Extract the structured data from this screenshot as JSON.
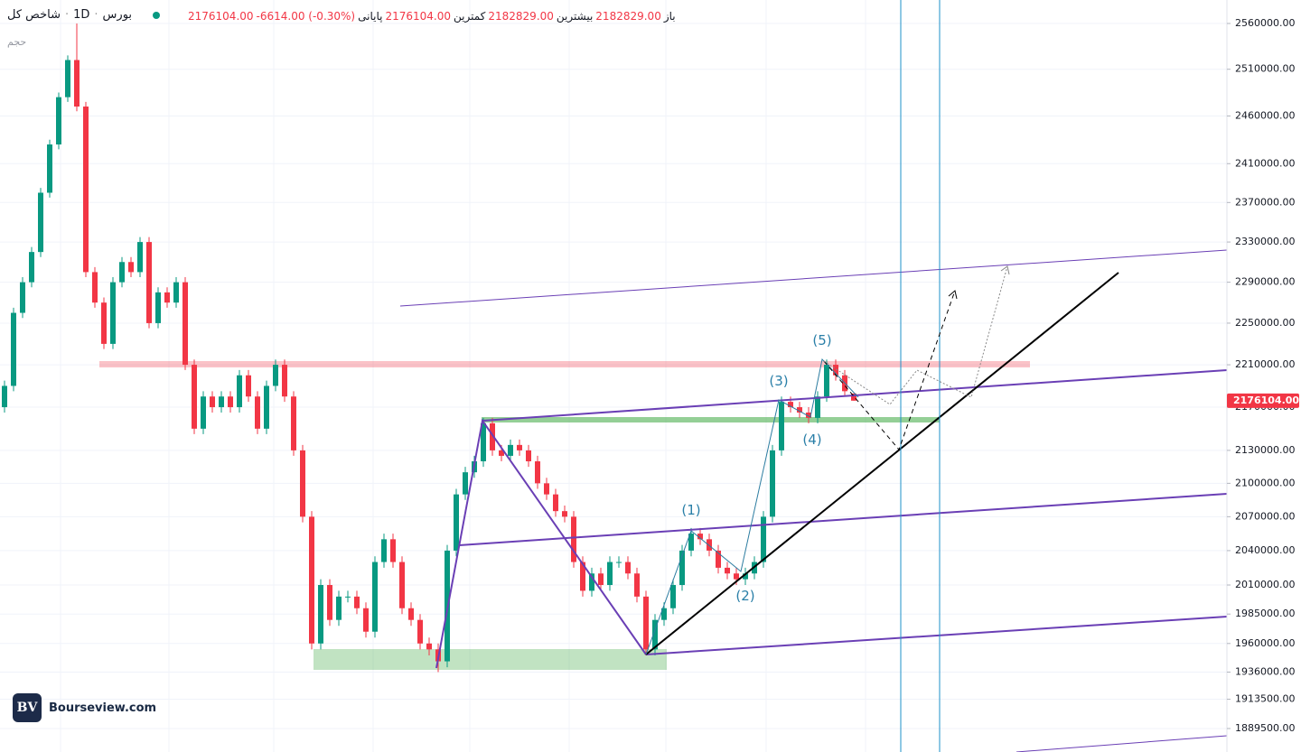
{
  "header": {
    "title": "شاخص کل",
    "interval": "1D",
    "exchange": "بورس",
    "close_value": "2176104.00",
    "change": "-6614.00 (-0.30%)",
    "close_label": "پایانی",
    "low_value": "2176104.00",
    "low_label": "کمترین",
    "high_value": "2182829.00",
    "high_label": "بیشترین",
    "open_value": "2182829.00",
    "open_label": "باز",
    "volume_label": "حجم"
  },
  "logo": {
    "mark": "BV",
    "text": "Bourseview.com"
  },
  "annotations": {
    "wave1": "(1)",
    "wave2": "(2)",
    "wave3": "(3)",
    "wave4": "(4)",
    "wave5": "(5)"
  },
  "chart_data": {
    "type": "candlestick",
    "log_scale": true,
    "grid": true,
    "up_color": "#089981",
    "down_color": "#f23645",
    "ylim": [
      1870500,
      2586000
    ],
    "yticks": [
      {
        "value": 2560000,
        "label": "2560000.00"
      },
      {
        "value": 2510000,
        "label": "2510000.00"
      },
      {
        "value": 2460000,
        "label": "2460000.00"
      },
      {
        "value": 2410000,
        "label": "2410000.00"
      },
      {
        "value": 2370000,
        "label": "2370000.00"
      },
      {
        "value": 2330000,
        "label": "2330000.00"
      },
      {
        "value": 2290000,
        "label": "2290000.00"
      },
      {
        "value": 2250000,
        "label": "2250000.00"
      },
      {
        "value": 2210000,
        "label": "2210000.00"
      },
      {
        "value": 2170000,
        "label": "2170000.00"
      },
      {
        "value": 2130000,
        "label": "2130000.00"
      },
      {
        "value": 2100000,
        "label": "2100000.00"
      },
      {
        "value": 2070000,
        "label": "2070000.00"
      },
      {
        "value": 2040000,
        "label": "2040000.00"
      },
      {
        "value": 2010000,
        "label": "2010000.00"
      },
      {
        "value": 1985000,
        "label": "1985000.00"
      },
      {
        "value": 1960000,
        "label": "1960000.00"
      },
      {
        "value": 1936000,
        "label": "1936000.00"
      },
      {
        "value": 1913500,
        "label": "1913500.00"
      },
      {
        "value": 1889500,
        "label": "1889500.00"
      }
    ],
    "last_price": {
      "value": 2176104,
      "label": "2176104.00"
    },
    "open": [
      2170000,
      2190000,
      2260000,
      2290000,
      2320000,
      2380000,
      2430000,
      2480000,
      2520000,
      2470000,
      2300000,
      2270000,
      2230000,
      2290000,
      2310000,
      2300000,
      2330000,
      2250000,
      2280000,
      2270000,
      2290000,
      2210000,
      2150000,
      2180000,
      2170000,
      2180000,
      2170000,
      2200000,
      2180000,
      2150000,
      2190000,
      2210000,
      2180000,
      2130000,
      2070000,
      1960000,
      2010000,
      1980000,
      2000000,
      2000000,
      1990000,
      1970000,
      2030000,
      2050000,
      2030000,
      1990000,
      1980000,
      1960000,
      1955000,
      1945000,
      2040000,
      2090000,
      2110000,
      2120000,
      2155000,
      2130000,
      2125000,
      2135000,
      2130000,
      2120000,
      2100000,
      2090000,
      2075000,
      2070000,
      2030000,
      2005000,
      2020000,
      2010000,
      2030000,
      2030000,
      2020000,
      2000000,
      1955000,
      1980000,
      1990000,
      2010000,
      2040000,
      2055000,
      2050000,
      2040000,
      2025000,
      2020000,
      2015000,
      2020000,
      2030000,
      2070000,
      2130000,
      2175000,
      2170000,
      2165000,
      2160000,
      2180000,
      2210000,
      2200000,
      2182829
    ],
    "high": [
      2195000,
      2265000,
      2295000,
      2325000,
      2385000,
      2435000,
      2485000,
      2525000,
      2560000,
      2475000,
      2305000,
      2275000,
      2295000,
      2315000,
      2315000,
      2335000,
      2335000,
      2285000,
      2285000,
      2295000,
      2295000,
      2215000,
      2185000,
      2185000,
      2185000,
      2185000,
      2205000,
      2205000,
      2185000,
      2195000,
      2215000,
      2215000,
      2185000,
      2135000,
      2075000,
      2015000,
      2015000,
      2005000,
      2005000,
      2005000,
      1995000,
      2035000,
      2055000,
      2055000,
      2035000,
      1995000,
      1985000,
      1965000,
      1960000,
      2045000,
      2095000,
      2115000,
      2125000,
      2160000,
      2160000,
      2135000,
      2140000,
      2140000,
      2135000,
      2125000,
      2105000,
      2095000,
      2080000,
      2075000,
      2035000,
      2025000,
      2025000,
      2035000,
      2035000,
      2035000,
      2025000,
      2005000,
      1985000,
      1995000,
      2015000,
      2045000,
      2060000,
      2060000,
      2055000,
      2045000,
      2030000,
      2025000,
      2025000,
      2035000,
      2075000,
      2135000,
      2180000,
      2180000,
      2175000,
      2170000,
      2185000,
      2215000,
      2215000,
      2205000,
      2182829
    ],
    "low": [
      2165000,
      2185000,
      2255000,
      2285000,
      2315000,
      2375000,
      2425000,
      2475000,
      2465000,
      2295000,
      2265000,
      2225000,
      2225000,
      2285000,
      2295000,
      2295000,
      2245000,
      2245000,
      2265000,
      2265000,
      2205000,
      2145000,
      2145000,
      2165000,
      2165000,
      2165000,
      2165000,
      2175000,
      2145000,
      2145000,
      2185000,
      2175000,
      2125000,
      2065000,
      1955000,
      1955000,
      1975000,
      1975000,
      1995000,
      1985000,
      1965000,
      1965000,
      2025000,
      2025000,
      1985000,
      1975000,
      1955000,
      1950000,
      1936000,
      1940000,
      2035000,
      2085000,
      2105000,
      2115000,
      2125000,
      2120000,
      2120000,
      2125000,
      2115000,
      2095000,
      2085000,
      2070000,
      2065000,
      2025000,
      2000000,
      2000000,
      2005000,
      2005000,
      2025000,
      2015000,
      1995000,
      1950000,
      1950000,
      1975000,
      1985000,
      2005000,
      2035000,
      2045000,
      2035000,
      2020000,
      2015000,
      2010000,
      2010000,
      2015000,
      2025000,
      2065000,
      2125000,
      2165000,
      2160000,
      2155000,
      2155000,
      2175000,
      2195000,
      2180000,
      2176104
    ],
    "close": [
      2190000,
      2260000,
      2290000,
      2320000,
      2380000,
      2430000,
      2480000,
      2520000,
      2470000,
      2300000,
      2270000,
      2230000,
      2290000,
      2310000,
      2300000,
      2330000,
      2250000,
      2280000,
      2270000,
      2290000,
      2210000,
      2150000,
      2180000,
      2170000,
      2180000,
      2170000,
      2200000,
      2180000,
      2150000,
      2190000,
      2210000,
      2180000,
      2130000,
      2070000,
      1960000,
      2010000,
      1980000,
      2000000,
      2000000,
      1990000,
      1970000,
      2030000,
      2050000,
      2030000,
      1990000,
      1980000,
      1960000,
      1955000,
      1945000,
      2040000,
      2090000,
      2110000,
      2120000,
      2155000,
      2130000,
      2125000,
      2135000,
      2130000,
      2120000,
      2100000,
      2090000,
      2075000,
      2070000,
      2030000,
      2005000,
      2020000,
      2010000,
      2030000,
      2030000,
      2020000,
      2000000,
      1955000,
      1980000,
      1990000,
      2010000,
      2040000,
      2055000,
      2050000,
      2040000,
      2025000,
      2020000,
      2015000,
      2020000,
      2030000,
      2070000,
      2130000,
      2175000,
      2170000,
      2165000,
      2160000,
      2180000,
      2210000,
      2200000,
      2185000,
      2176104
    ]
  }
}
